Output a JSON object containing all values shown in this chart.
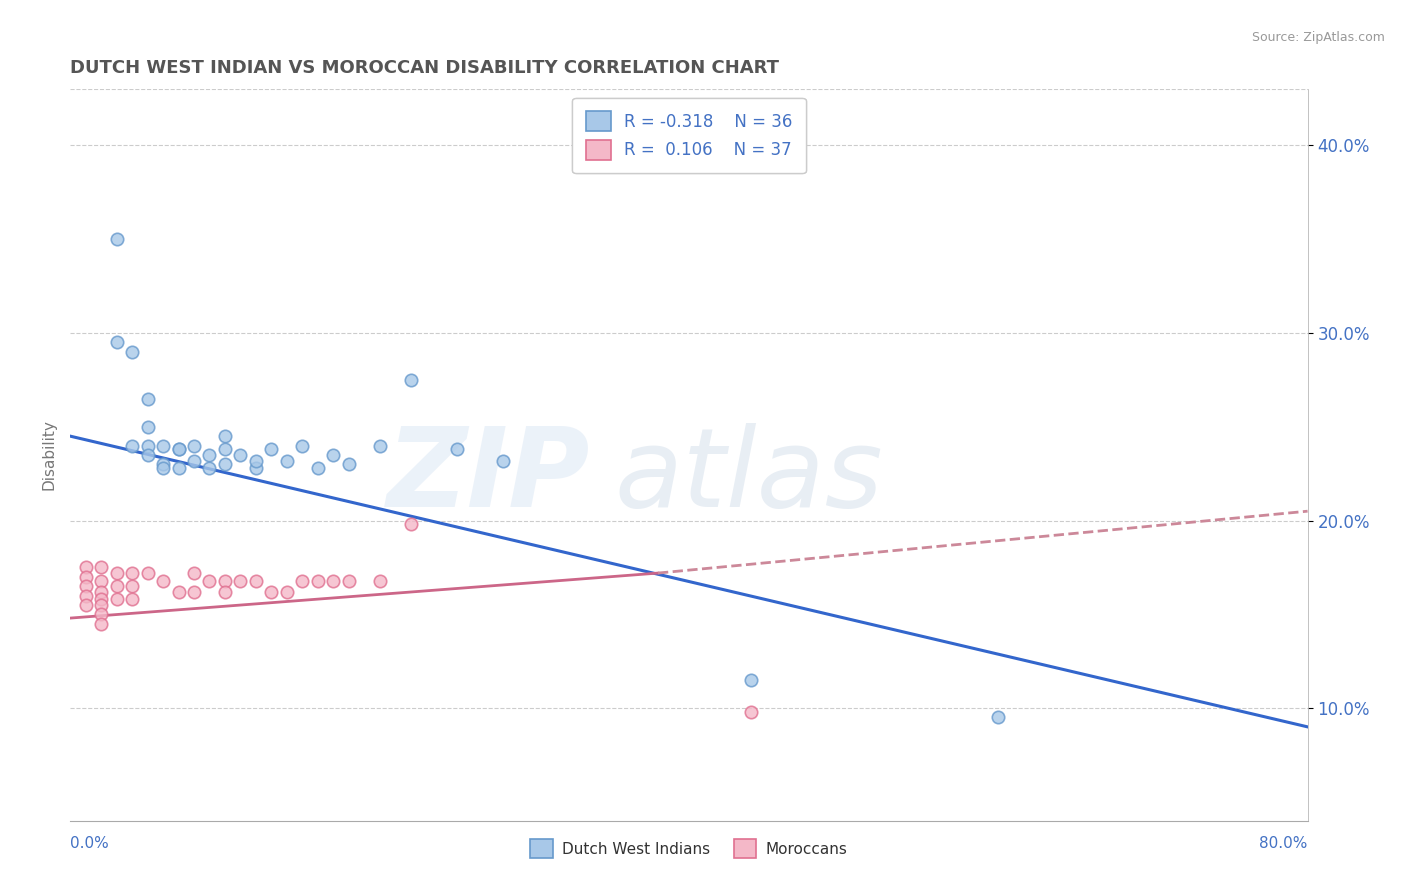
{
  "title": "DUTCH WEST INDIAN VS MOROCCAN DISABILITY CORRELATION CHART",
  "source": "Source: ZipAtlas.com",
  "ylabel": "Disability",
  "xlim": [
    0.0,
    0.8
  ],
  "ylim": [
    0.04,
    0.43
  ],
  "ytick_vals": [
    0.1,
    0.2,
    0.3,
    0.4
  ],
  "ytick_labels": [
    "10.0%",
    "20.0%",
    "30.0%",
    "40.0%"
  ],
  "blue_scatter_color": "#a8c8e8",
  "blue_scatter_edge": "#6699cc",
  "pink_scatter_color": "#f4b8c8",
  "pink_scatter_edge": "#e07090",
  "blue_line_color": "#3366cc",
  "pink_line_color": "#cc6688",
  "pink_dash_color": "#cc8899",
  "title_color": "#555555",
  "axis_color": "#4472C4",
  "legend_text_color": "#4472C4",
  "background_color": "#ffffff",
  "grid_color": "#cccccc",
  "dutch_x": [
    0.03,
    0.04,
    0.05,
    0.05,
    0.05,
    0.06,
    0.06,
    0.07,
    0.07,
    0.08,
    0.09,
    0.1,
    0.1,
    0.11,
    0.12,
    0.13,
    0.14,
    0.15,
    0.17,
    0.18,
    0.2,
    0.22,
    0.25,
    0.28,
    0.44,
    0.6,
    0.03,
    0.04,
    0.05,
    0.06,
    0.07,
    0.08,
    0.09,
    0.1,
    0.12,
    0.16
  ],
  "dutch_y": [
    0.35,
    0.29,
    0.265,
    0.25,
    0.24,
    0.24,
    0.23,
    0.238,
    0.228,
    0.24,
    0.235,
    0.245,
    0.23,
    0.235,
    0.228,
    0.238,
    0.232,
    0.24,
    0.235,
    0.23,
    0.24,
    0.275,
    0.238,
    0.232,
    0.115,
    0.095,
    0.295,
    0.24,
    0.235,
    0.228,
    0.238,
    0.232,
    0.228,
    0.238,
    0.232,
    0.228
  ],
  "moroccan_x": [
    0.01,
    0.01,
    0.01,
    0.01,
    0.01,
    0.02,
    0.02,
    0.02,
    0.02,
    0.02,
    0.02,
    0.02,
    0.03,
    0.03,
    0.03,
    0.04,
    0.04,
    0.04,
    0.05,
    0.06,
    0.08,
    0.08,
    0.09,
    0.1,
    0.1,
    0.12,
    0.14,
    0.16,
    0.18,
    0.2,
    0.22,
    0.44,
    0.15,
    0.07,
    0.11,
    0.13,
    0.17
  ],
  "moroccan_y": [
    0.175,
    0.17,
    0.165,
    0.16,
    0.155,
    0.175,
    0.168,
    0.162,
    0.158,
    0.155,
    0.15,
    0.145,
    0.172,
    0.165,
    0.158,
    0.172,
    0.165,
    0.158,
    0.172,
    0.168,
    0.172,
    0.162,
    0.168,
    0.168,
    0.162,
    0.168,
    0.162,
    0.168,
    0.168,
    0.168,
    0.198,
    0.098,
    0.168,
    0.162,
    0.168,
    0.162,
    0.168
  ]
}
